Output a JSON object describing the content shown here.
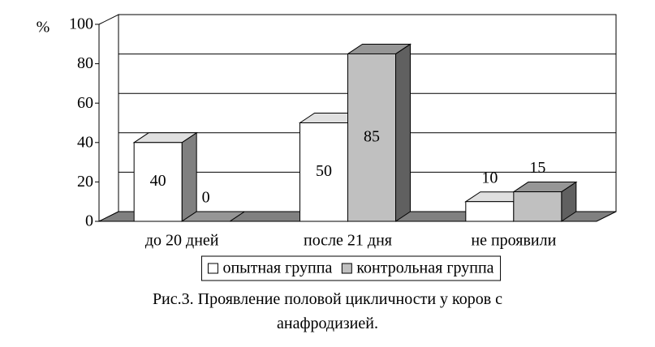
{
  "chart_data": {
    "type": "bar3d",
    "caption": "Рис.3. Проявление половой цикличности у коров с анафродизией.",
    "y_label": "%",
    "categories": [
      "до 20 дней",
      "после 21 дня",
      "не проявили"
    ],
    "series": [
      {
        "name": "опытная группа",
        "color": "#ffffff",
        "values": [
          40,
          50,
          10
        ]
      },
      {
        "name": "контрольная группа",
        "color": "#c0c0c0",
        "values": [
          0,
          85,
          15
        ]
      }
    ],
    "ylim": [
      0,
      100
    ],
    "yticks": [
      0,
      20,
      40,
      60,
      80,
      100
    ],
    "grid": true,
    "legend": "bottom"
  }
}
